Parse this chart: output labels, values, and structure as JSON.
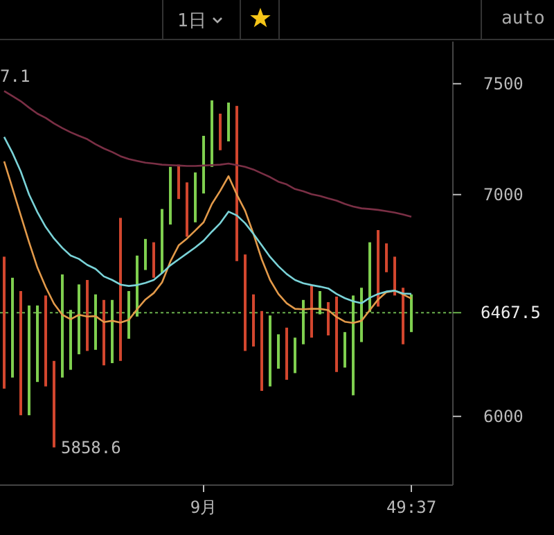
{
  "chart_data": {
    "type": "bar",
    "categories": [
      null,
      null,
      null,
      null,
      null,
      null,
      null,
      null,
      null,
      null,
      null,
      null,
      null,
      null,
      null,
      null,
      null,
      null,
      null,
      null,
      null,
      null,
      null,
      null,
      "9月",
      null,
      null,
      null,
      null,
      null,
      null,
      null,
      null,
      null,
      null,
      null,
      null,
      null,
      null,
      null,
      null,
      null,
      null,
      null,
      null,
      null,
      null,
      null,
      null,
      "49:37"
    ],
    "series": [
      {
        "base": [
          6125,
          6175,
          6005,
          6005,
          6155,
          6135,
          5860,
          6175,
          6210,
          6280,
          6295,
          6300,
          6230,
          6240,
          6250,
          6350,
          6450,
          6660,
          6625,
          6645,
          6865,
          6980,
          6810,
          6875,
          7005,
          7125,
          7200,
          7240,
          6700,
          6295,
          6315,
          6115,
          6135,
          6215,
          6165,
          6195,
          6325,
          6355,
          6460,
          6365,
          6200,
          6220,
          6095,
          6335,
          6470,
          6495,
          6650,
          6545,
          6325,
          6380
        ],
        "values": [
          595,
          450,
          560,
          495,
          345,
          410,
          390,
          465,
          270,
          315,
          320,
          250,
          295,
          285,
          645,
          215,
          275,
          140,
          160,
          290,
          260,
          155,
          245,
          225,
          260,
          300,
          165,
          175,
          700,
          435,
          235,
          360,
          320,
          155,
          235,
          160,
          200,
          235,
          105,
          150,
          340,
          160,
          450,
          245,
          315,
          345,
          130,
          175,
          255,
          170
        ],
        "colors": [
          "#d2462e",
          "#7fcf4f",
          "#d2462e",
          "#7fcf4f",
          "#7fcf4f",
          "#d2462e",
          "#d2462e",
          "#7fcf4f",
          "#7fcf4f",
          "#7fcf4f",
          "#d2462e",
          "#7fcf4f",
          "#d2462e",
          "#7fcf4f",
          "#d2462e",
          "#7fcf4f",
          "#7fcf4f",
          "#7fcf4f",
          "#d2462e",
          "#7fcf4f",
          "#7fcf4f",
          "#d2462e",
          "#d2462e",
          "#7fcf4f",
          "#7fcf4f",
          "#7fcf4f",
          "#d2462e",
          "#7fcf4f",
          "#d2462e",
          "#d2462e",
          "#d2462e",
          "#d2462e",
          "#7fcf4f",
          "#7fcf4f",
          "#d2462e",
          "#7fcf4f",
          "#7fcf4f",
          "#d2462e",
          "#7fcf4f",
          "#d2462e",
          "#d2462e",
          "#7fcf4f",
          "#7fcf4f",
          "#7fcf4f",
          "#7fcf4f",
          "#d2462e",
          "#d2462e",
          "#d2462e",
          "#d2462e",
          "#7fcf4f"
        ]
      },
      {
        "type": "line",
        "color": "#e39a4a",
        "values": [
          7150,
          7029,
          6906,
          6785,
          6671,
          6583,
          6508,
          6458,
          6438,
          6458,
          6450,
          6452,
          6425,
          6431,
          6423,
          6435,
          6483,
          6527,
          6556,
          6604,
          6698,
          6771,
          6802,
          6838,
          6875,
          6958,
          7017,
          7083,
          7000,
          6927,
          6823,
          6708,
          6615,
          6552,
          6510,
          6485,
          6483,
          6485,
          6485,
          6479,
          6448,
          6427,
          6421,
          6431,
          6479,
          6527,
          6560,
          6567,
          6550,
          6531
        ]
      },
      {
        "type": "line",
        "color": "#7ad3d8",
        "values": [
          7260,
          7188,
          7104,
          7000,
          6921,
          6854,
          6802,
          6760,
          6725,
          6710,
          6683,
          6665,
          6631,
          6615,
          6594,
          6588,
          6592,
          6602,
          6615,
          6646,
          6681,
          6708,
          6735,
          6762,
          6792,
          6833,
          6871,
          6923,
          6906,
          6871,
          6823,
          6771,
          6719,
          6677,
          6642,
          6615,
          6600,
          6592,
          6585,
          6577,
          6552,
          6533,
          6519,
          6510,
          6535,
          6552,
          6563,
          6567,
          6554,
          6552
        ]
      },
      {
        "type": "line",
        "color": "#7a2f45",
        "values": [
          7467,
          7444,
          7421,
          7392,
          7365,
          7346,
          7321,
          7300,
          7281,
          7265,
          7250,
          7227,
          7208,
          7192,
          7173,
          7160,
          7152,
          7144,
          7140,
          7135,
          7133,
          7131,
          7129,
          7129,
          7131,
          7133,
          7135,
          7140,
          7133,
          7125,
          7113,
          7096,
          7079,
          7058,
          7046,
          7025,
          7015,
          7002,
          6994,
          6983,
          6973,
          6958,
          6946,
          6938,
          6935,
          6931,
          6925,
          6919,
          6910,
          6900
        ]
      }
    ],
    "ylim": [
      5690,
      7690
    ],
    "yticks": [
      6000,
      7000,
      7500
    ],
    "ref_lines": [
      {
        "axis": "y",
        "value": 6467.5,
        "label": "6467.5",
        "color": "#6ab04c",
        "line_style": "dotted"
      }
    ],
    "annotations": [
      "1日",
      "auto",
      "7.1",
      "5858.6"
    ]
  }
}
